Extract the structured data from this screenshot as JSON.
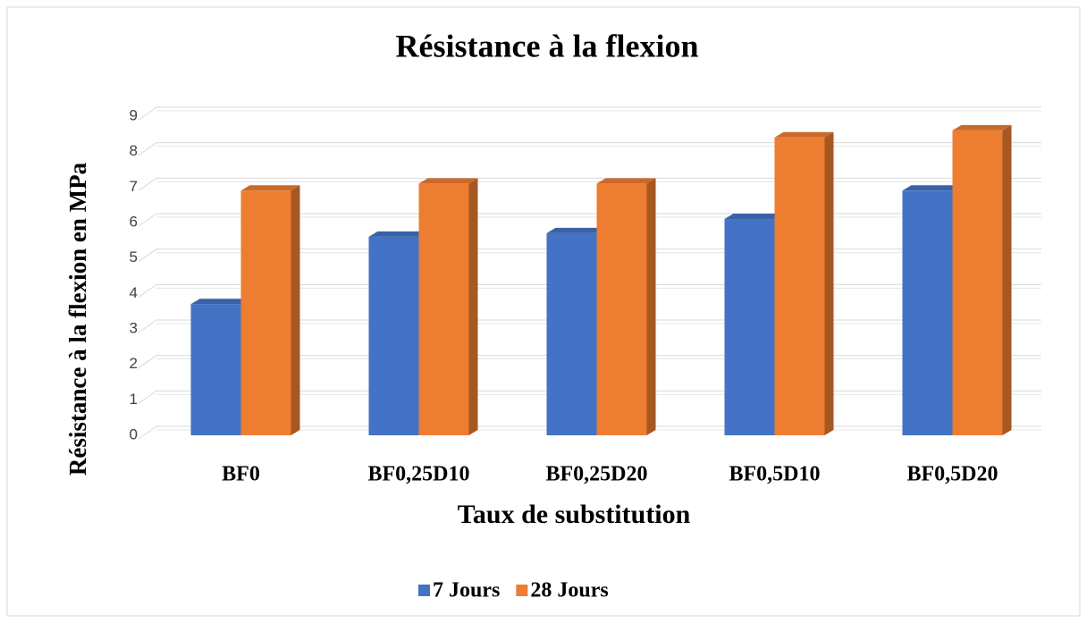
{
  "chart_data": {
    "type": "bar3d",
    "title": "Résistance à la flexion",
    "x_label": "Taux de substitution",
    "y_label": "Résistance à la flexion en MPa",
    "categories": [
      "BF0",
      "BF0,25D10",
      "BF0,25D20",
      "BF0,5D10",
      "BF0,5D20"
    ],
    "series": [
      {
        "name": "7 Jours",
        "color": "#4472c4",
        "values": [
          3.7,
          5.6,
          5.7,
          6.1,
          6.9
        ]
      },
      {
        "name": "28 Jours",
        "color": "#ed7d31",
        "values": [
          6.9,
          7.1,
          7.1,
          8.4,
          8.6
        ]
      }
    ],
    "ylim": [
      0,
      9
    ],
    "yticks": [
      0,
      1,
      2,
      3,
      4,
      5,
      6,
      7,
      8,
      9
    ],
    "grid": true,
    "legend": "bottom"
  }
}
